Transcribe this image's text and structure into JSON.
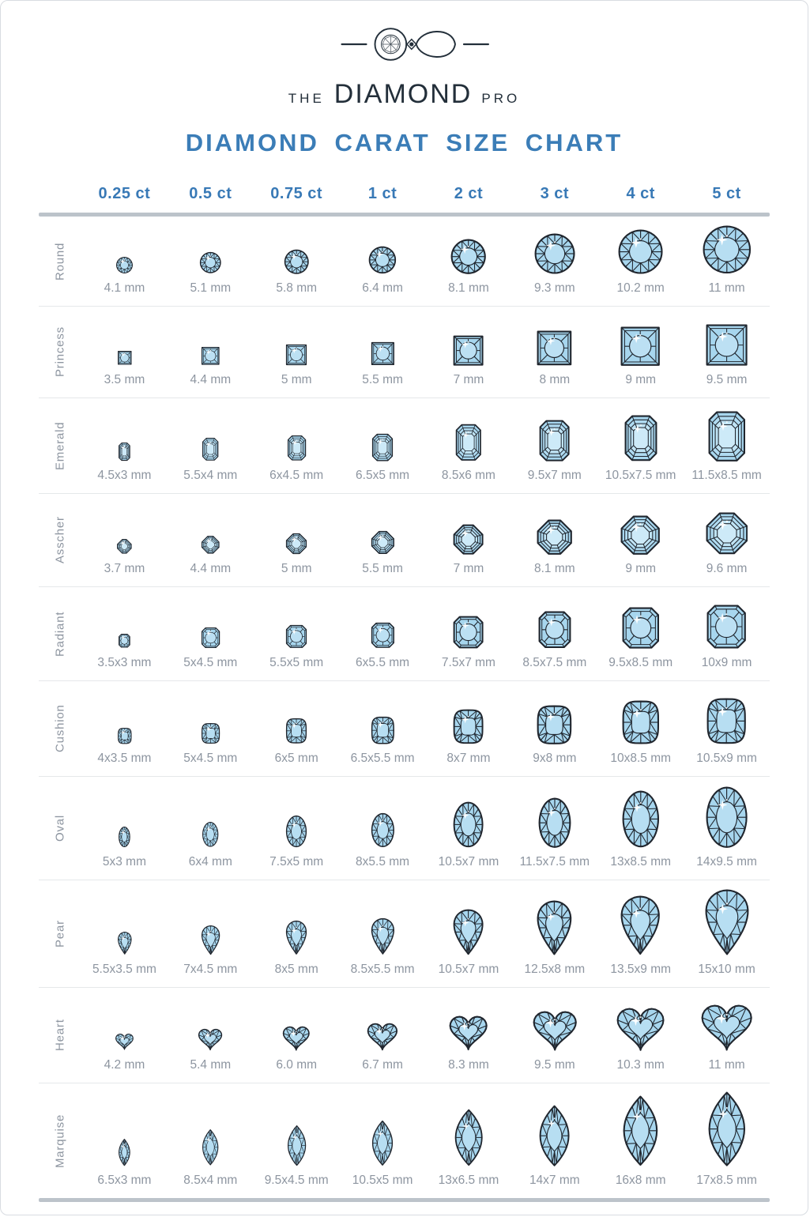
{
  "brand": {
    "the": "THE",
    "name": "DIAMOND",
    "pro": "PRO"
  },
  "title": "DIAMOND CARAT SIZE CHART",
  "colors": {
    "accent": "#3b7db7",
    "header_blue": "#3879b6",
    "text_muted": "#8d95a0",
    "gem_fill": "#a7d6ee",
    "gem_fill_light": "#bce0f3",
    "gem_stroke": "#20262e",
    "bar_gray": "#bcc3ca",
    "line_gray": "#e5e8ea"
  },
  "chart_data": {
    "type": "table",
    "title": "DIAMOND CARAT SIZE CHART",
    "columns": [
      "0.25 ct",
      "0.5 ct",
      "0.75 ct",
      "1 ct",
      "2 ct",
      "3 ct",
      "4 ct",
      "5 ct"
    ],
    "unit": "mm",
    "rows": [
      {
        "shape": "Round",
        "cut": "round",
        "sizes": [
          "4.1 mm",
          "5.1 mm",
          "5.8 mm",
          "6.4 mm",
          "8.1 mm",
          "9.3 mm",
          "10.2 mm",
          "11 mm"
        ]
      },
      {
        "shape": "Princess",
        "cut": "princess",
        "sizes": [
          "3.5 mm",
          "4.4 mm",
          "5 mm",
          "5.5 mm",
          "7 mm",
          "8 mm",
          "9 mm",
          "9.5 mm"
        ]
      },
      {
        "shape": "Emerald",
        "cut": "emerald",
        "sizes": [
          "4.5x3 mm",
          "5.5x4 mm",
          "6x4.5 mm",
          "6.5x5 mm",
          "8.5x6 mm",
          "9.5x7 mm",
          "10.5x7.5 mm",
          "11.5x8.5 mm"
        ]
      },
      {
        "shape": "Asscher",
        "cut": "asscher",
        "sizes": [
          "3.7 mm",
          "4.4 mm",
          "5 mm",
          "5.5 mm",
          "7 mm",
          "8.1 mm",
          "9 mm",
          "9.6 mm"
        ]
      },
      {
        "shape": "Radiant",
        "cut": "radiant",
        "sizes": [
          "3.5x3 mm",
          "5x4.5 mm",
          "5.5x5 mm",
          "6x5.5 mm",
          "7.5x7 mm",
          "8.5x7.5 mm",
          "9.5x8.5 mm",
          "10x9 mm"
        ]
      },
      {
        "shape": "Cushion",
        "cut": "cushion",
        "sizes": [
          "4x3.5 mm",
          "5x4.5 mm",
          "6x5 mm",
          "6.5x5.5 mm",
          "8x7 mm",
          "9x8 mm",
          "10x8.5 mm",
          "10.5x9 mm"
        ]
      },
      {
        "shape": "Oval",
        "cut": "oval",
        "sizes": [
          "5x3 mm",
          "6x4 mm",
          "7.5x5 mm",
          "8x5.5 mm",
          "10.5x7 mm",
          "11.5x7.5 mm",
          "13x8.5 mm",
          "14x9.5 mm"
        ]
      },
      {
        "shape": "Pear",
        "cut": "pear",
        "sizes": [
          "5.5x3.5 mm",
          "7x4.5 mm",
          "8x5 mm",
          "8.5x5.5 mm",
          "10.5x7 mm",
          "12.5x8 mm",
          "13.5x9 mm",
          "15x10 mm"
        ]
      },
      {
        "shape": "Heart",
        "cut": "heart",
        "sizes": [
          "4.2 mm",
          "5.4 mm",
          "6.0 mm",
          "6.7 mm",
          "8.3 mm",
          "9.5 mm",
          "10.3 mm",
          "11 mm"
        ]
      },
      {
        "shape": "Marquise",
        "cut": "marquise",
        "sizes": [
          "6.5x3 mm",
          "8.5x4 mm",
          "9.5x4.5 mm",
          "10.5x5 mm",
          "13x6.5 mm",
          "14x7 mm",
          "16x8 mm",
          "17x8.5 mm"
        ]
      }
    ]
  }
}
